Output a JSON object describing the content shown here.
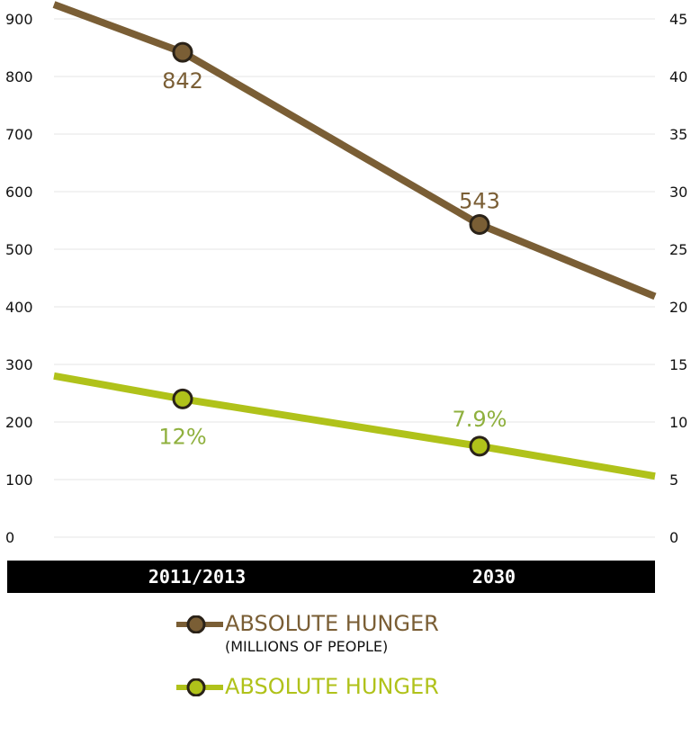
{
  "chart_data": {
    "type": "line",
    "categories": [
      "2011/2013",
      "2030"
    ],
    "y_left": {
      "ticks": [
        "0",
        "100",
        "200",
        "300",
        "400",
        "500",
        "600",
        "700",
        "800",
        "900"
      ],
      "range": [
        0,
        900
      ]
    },
    "y_right": {
      "ticks": [
        "0",
        "5",
        "10",
        "15",
        "20",
        "25",
        "30",
        "35",
        "40",
        "45"
      ],
      "range": [
        0,
        45
      ]
    },
    "grid": true,
    "legend_position": "bottom",
    "series": [
      {
        "key": "absolute",
        "axis": "left",
        "color": "#7a5e35",
        "values": [
          842,
          543
        ],
        "trend_edges": [
          925,
          418
        ],
        "labels": [
          "842",
          "543"
        ],
        "legend_title": "ABSOLUTE HUNGER",
        "legend_subtitle": "(MILLIONS OF PEOPLE)"
      },
      {
        "key": "relative",
        "axis": "right",
        "color": "#b0c21a",
        "label_color": "#8fb03e",
        "values": [
          12,
          7.9
        ],
        "trend_edges": [
          14,
          5.3
        ],
        "labels": [
          "12%",
          "7.9%"
        ],
        "legend_title": "ABSOLUTE HUNGER"
      }
    ]
  }
}
